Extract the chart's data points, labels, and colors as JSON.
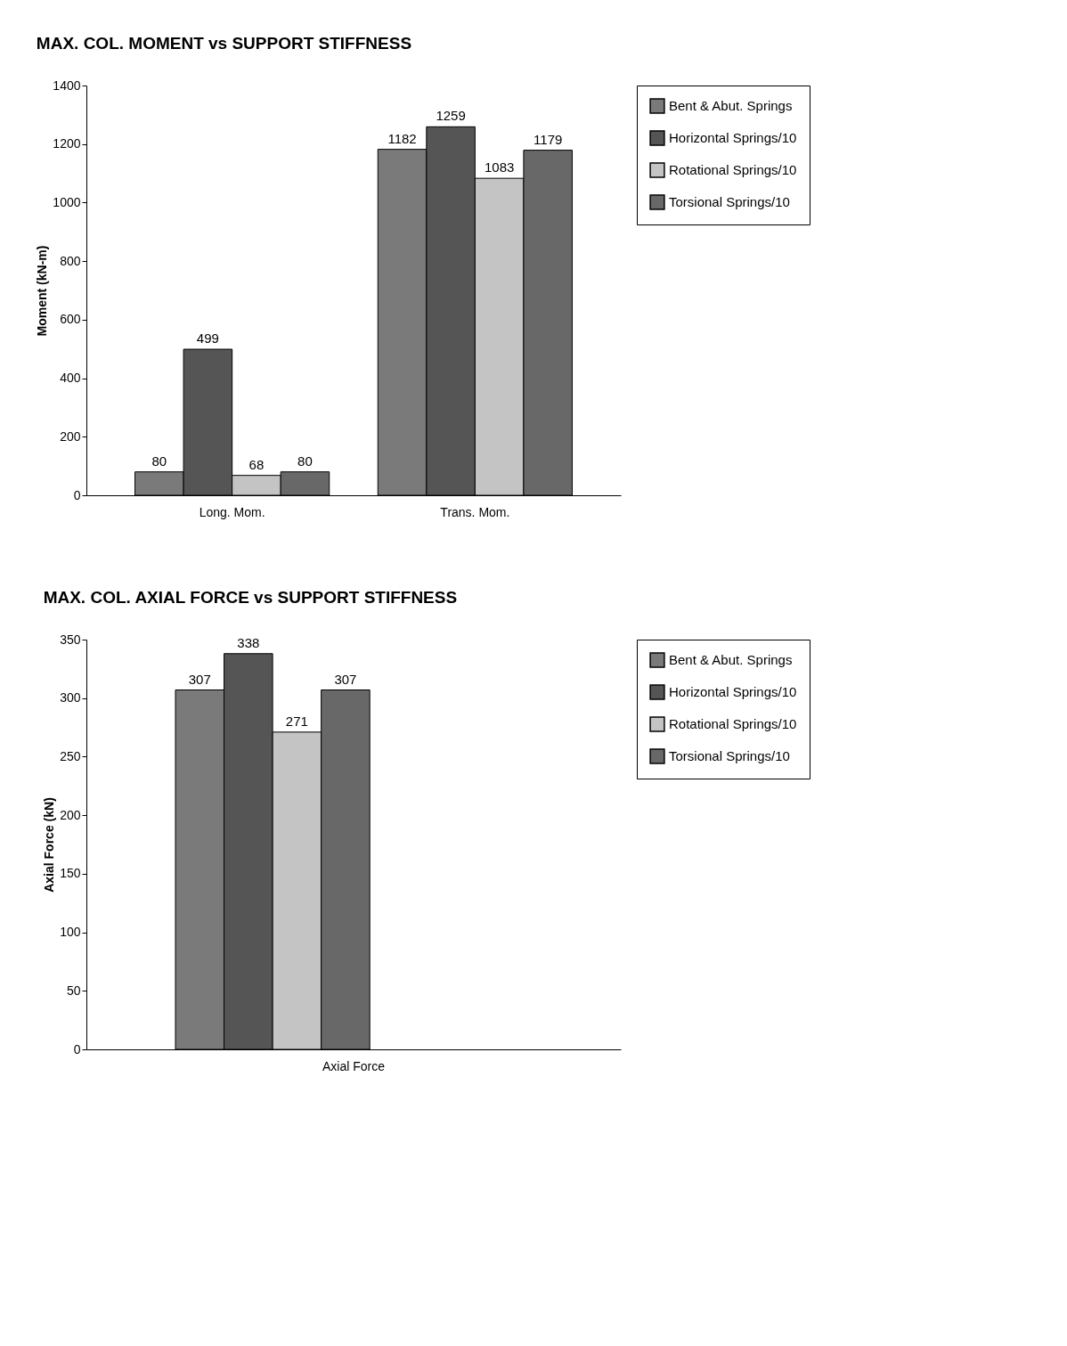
{
  "chart_data": [
    {
      "type": "bar",
      "title": "MAX. COL. MOMENT vs SUPPORT STIFFNESS",
      "ylabel": "Moment (kN-m)",
      "categories": [
        "Long. Mom.",
        "Trans. Mom."
      ],
      "series": [
        {
          "name": "Bent & Abut. Springs",
          "color": "#7a7a7a",
          "values": [
            80,
            1182
          ]
        },
        {
          "name": "Horizontal Springs/10",
          "color": "#555555",
          "values": [
            499,
            1259
          ]
        },
        {
          "name": "Rotational Springs/10",
          "color": "#c4c4c4",
          "values": [
            68,
            1083
          ]
        },
        {
          "name": "Torsional Springs/10",
          "color": "#686868",
          "values": [
            80,
            1179
          ]
        }
      ],
      "ylim": [
        0,
        1400
      ],
      "yticks": [
        0,
        200,
        400,
        600,
        800,
        1000,
        1200,
        1400
      ],
      "data_labels": true,
      "legend": "right",
      "grid": false
    },
    {
      "type": "bar",
      "title": "MAX. COL. AXIAL FORCE vs SUPPORT STIFFNESS",
      "ylabel": "Axial Force (kN)",
      "categories": [
        "Axial Force"
      ],
      "series": [
        {
          "name": "Bent & Abut. Springs",
          "color": "#7a7a7a",
          "values": [
            307
          ]
        },
        {
          "name": "Horizontal Springs/10",
          "color": "#555555",
          "values": [
            338
          ]
        },
        {
          "name": "Rotational Springs/10",
          "color": "#c4c4c4",
          "values": [
            271
          ]
        },
        {
          "name": "Torsional Springs/10",
          "color": "#686868",
          "values": [
            307
          ]
        }
      ],
      "ylim": [
        0,
        350
      ],
      "yticks": [
        0,
        50,
        100,
        150,
        200,
        250,
        300,
        350
      ],
      "data_labels": true,
      "legend": "right",
      "grid": false
    }
  ]
}
